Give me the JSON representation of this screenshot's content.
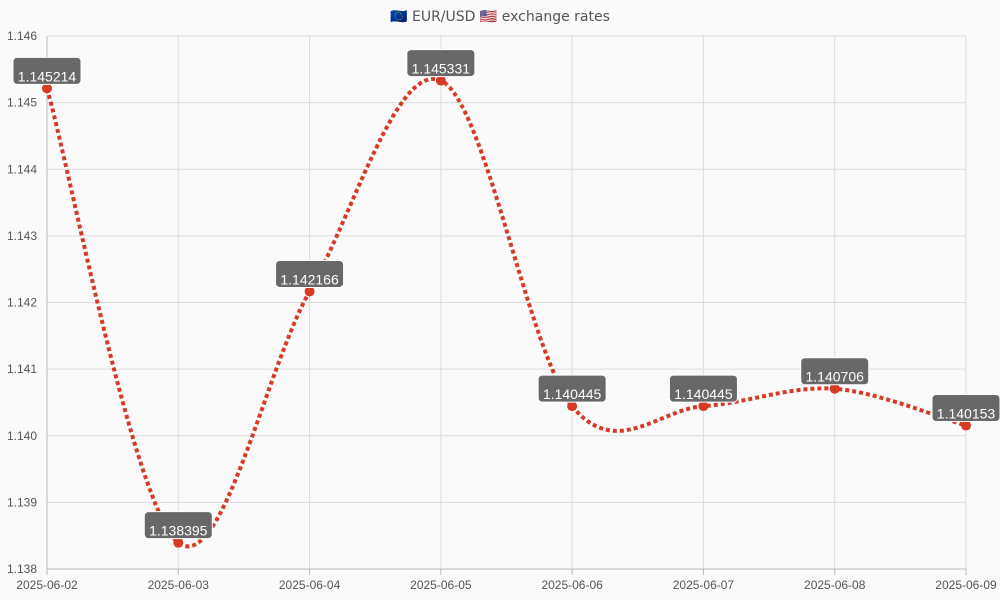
{
  "chart": {
    "title": "🇪🇺 EUR/USD 🇺🇸 exchange rates"
  },
  "colors": {
    "line": "#d63a24",
    "point": "#d63a24",
    "label_bg": "#686868",
    "label_text": "#ffffff",
    "grid": "#dddddd",
    "axis": "#bbbbbb",
    "background": "#fafafa"
  },
  "chart_data": {
    "type": "line",
    "title": "🇪🇺 EUR/USD 🇺🇸 exchange rates",
    "xlabel": "",
    "ylabel": "",
    "categories": [
      "2025-06-02",
      "2025-06-03",
      "2025-06-04",
      "2025-06-05",
      "2025-06-06",
      "2025-06-07",
      "2025-06-08",
      "2025-06-09"
    ],
    "series": [
      {
        "values": [
          1.145214,
          1.138395,
          1.142166,
          1.145331,
          1.140445,
          1.140445,
          1.140706,
          1.140153
        ],
        "labels": [
          "1.145214",
          "1.138395",
          "1.142166",
          "1.145331",
          "1.140445",
          "1.140445",
          "1.140706",
          "1.140153"
        ]
      }
    ],
    "ylim": [
      1.138,
      1.146
    ],
    "yticks": [
      "1.138",
      "1.139",
      "1.140",
      "1.141",
      "1.142",
      "1.143",
      "1.144",
      "1.145",
      "1.146"
    ],
    "line_style": "dotted",
    "smooth": true,
    "grid": true,
    "legend": false
  }
}
